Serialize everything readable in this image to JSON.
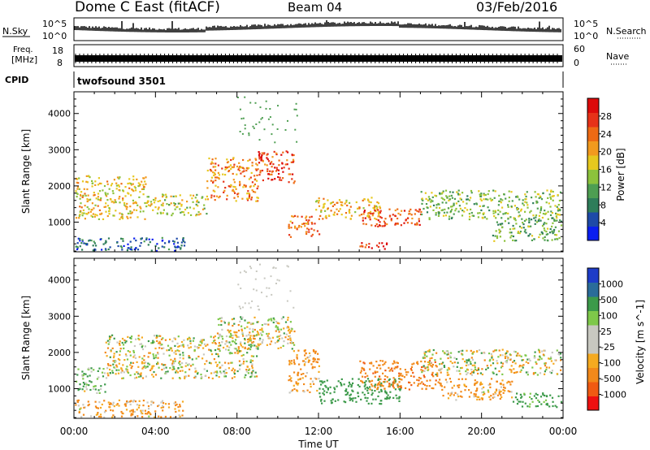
{
  "header": {
    "station": "Dome C East (fitACF)",
    "beam": "Beam 04",
    "date": "03/Feb/2016"
  },
  "noise_panel": {
    "left_label": "N.Sky",
    "right_label": "N.Search",
    "top_tick": "10^5",
    "bottom_tick": "10^0"
  },
  "freq_panel": {
    "left_label_1": "Freq.",
    "left_label_2": "[MHz]",
    "ticks_left": [
      "18",
      "8"
    ],
    "ticks_right": [
      "60",
      "0"
    ],
    "right_label": "Nave"
  },
  "cpid_panel": {
    "label": "CPID",
    "value": "twofsound 3501"
  },
  "x_axis": {
    "label": "Time UT",
    "ticks": [
      "00:00",
      "04:00",
      "08:00",
      "12:00",
      "16:00",
      "20:00",
      "00:00"
    ],
    "range_hours": [
      0,
      24
    ]
  },
  "colors": {
    "power_scale": [
      "#0a1ef0",
      "#1e4aa8",
      "#2e7d5a",
      "#4e9e52",
      "#8cc23c",
      "#e6c81e",
      "#f29a1e",
      "#ee6a14",
      "#e63218",
      "#dc0a0a"
    ],
    "velocity_scale": [
      "#ee1010",
      "#f05a12",
      "#f2891a",
      "#f5aa20",
      "#c8c8c0",
      "#c8c8c0",
      "#7ec84a",
      "#3c9a4a",
      "#2a6c9a",
      "#1e3cc8"
    ]
  },
  "chart_data": [
    {
      "type": "heatmap",
      "title": "Power",
      "ylabel": "Slant Range [km]",
      "xlabel": "",
      "yticks": [
        "1000",
        "2000",
        "3000",
        "4000"
      ],
      "ylim": [
        180,
        4600
      ],
      "xlim": [
        0,
        24
      ],
      "colorbar": {
        "label": "Power [dB]",
        "ticks": [
          "4",
          "8",
          "12",
          "16",
          "20",
          "24",
          "28"
        ],
        "range": [
          0,
          32
        ]
      },
      "regions": [
        {
          "t0": 0.0,
          "t1": 5.5,
          "r0": 230,
          "r1": 600,
          "v": 6
        },
        {
          "t0": 0.0,
          "t1": 3.5,
          "r0": 1100,
          "r1": 2300,
          "v": 18
        },
        {
          "t0": 3.5,
          "t1": 6.5,
          "r0": 1200,
          "r1": 1800,
          "v": 16
        },
        {
          "t0": 6.5,
          "t1": 9.0,
          "r0": 1600,
          "r1": 2800,
          "v": 22
        },
        {
          "t0": 9.0,
          "t1": 10.8,
          "r0": 2100,
          "r1": 3000,
          "v": 26
        },
        {
          "t0": 10.5,
          "t1": 12.0,
          "r0": 600,
          "r1": 1200,
          "v": 24
        },
        {
          "t0": 11.8,
          "t1": 15.0,
          "r0": 1100,
          "r1": 1700,
          "v": 20
        },
        {
          "t0": 14.0,
          "t1": 17.0,
          "r0": 900,
          "r1": 1400,
          "v": 26
        },
        {
          "t0": 14.0,
          "t1": 15.5,
          "r0": 250,
          "r1": 450,
          "v": 28
        },
        {
          "t0": 17.0,
          "t1": 24.0,
          "r0": 1100,
          "r1": 1900,
          "v": 14
        },
        {
          "t0": 20.5,
          "t1": 24.0,
          "r0": 500,
          "r1": 1100,
          "v": 12
        }
      ]
    },
    {
      "type": "heatmap",
      "title": "Velocity",
      "ylabel": "Slant Range [km]",
      "xlabel": "Time UT",
      "yticks": [
        "1000",
        "2000",
        "3000",
        "4000"
      ],
      "ylim": [
        180,
        4600
      ],
      "xlim": [
        0,
        24
      ],
      "colorbar": {
        "label": "Velocity [m s^-1]",
        "ticks": [
          "-1000",
          "-500",
          "-100",
          "-25",
          "25",
          "100",
          "500",
          "1000"
        ]
      },
      "regions": [
        {
          "t0": 0.0,
          "t1": 5.5,
          "r0": 230,
          "r1": 700,
          "v": -120
        },
        {
          "t0": 0.0,
          "t1": 1.5,
          "r0": 900,
          "r1": 1600,
          "v": 120
        },
        {
          "t0": 1.5,
          "t1": 9.0,
          "r0": 1300,
          "r1": 2500,
          "v": 0
        },
        {
          "t0": 7.0,
          "t1": 10.8,
          "r0": 2100,
          "r1": 3000,
          "v": 0
        },
        {
          "t0": 10.5,
          "t1": 12.0,
          "r0": 900,
          "r1": 2100,
          "v": -150
        },
        {
          "t0": 12.0,
          "t1": 16.0,
          "r0": 600,
          "r1": 1300,
          "v": 300
        },
        {
          "t0": 14.0,
          "t1": 18.0,
          "r0": 1000,
          "r1": 1800,
          "v": -400
        },
        {
          "t0": 17.0,
          "t1": 24.0,
          "r0": 1400,
          "r1": 2100,
          "v": 0
        },
        {
          "t0": 18.0,
          "t1": 21.5,
          "r0": 700,
          "r1": 1300,
          "v": -120
        },
        {
          "t0": 21.5,
          "t1": 24.0,
          "r0": 500,
          "r1": 900,
          "v": 200
        }
      ]
    }
  ]
}
